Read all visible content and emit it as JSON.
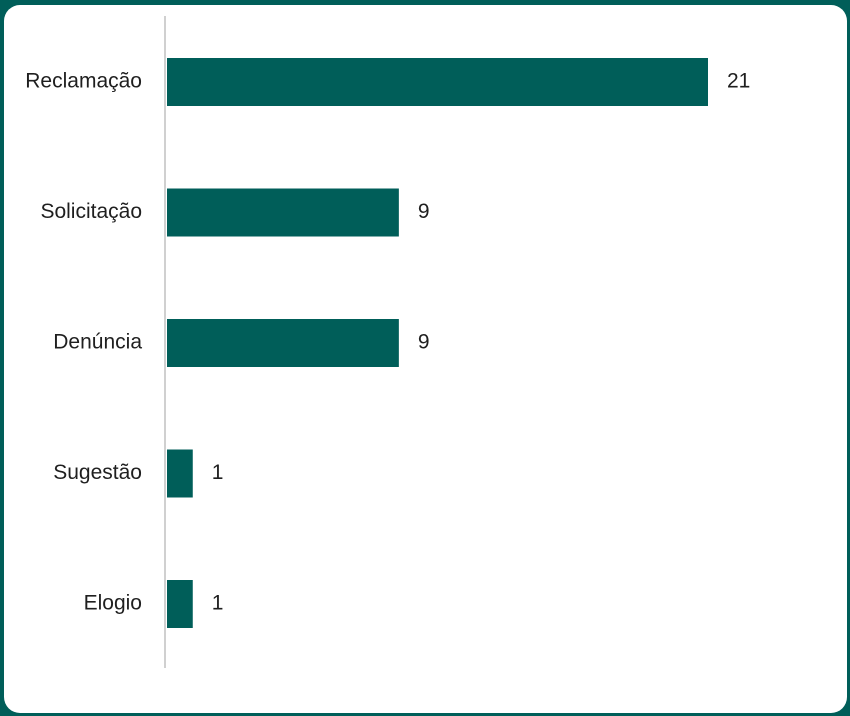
{
  "chart_data": {
    "type": "bar",
    "orientation": "horizontal",
    "categories": [
      "Reclamação",
      "Solicitação",
      "Denúncia",
      "Sugestão",
      "Elogio"
    ],
    "values": [
      21,
      9,
      9,
      1,
      1
    ],
    "title": "",
    "xlabel": "",
    "ylabel": "",
    "xlim": [
      0,
      21
    ],
    "grid": false,
    "data_labels": true,
    "bar_color": "#005e59",
    "axis_color": "#d0d0d0"
  }
}
